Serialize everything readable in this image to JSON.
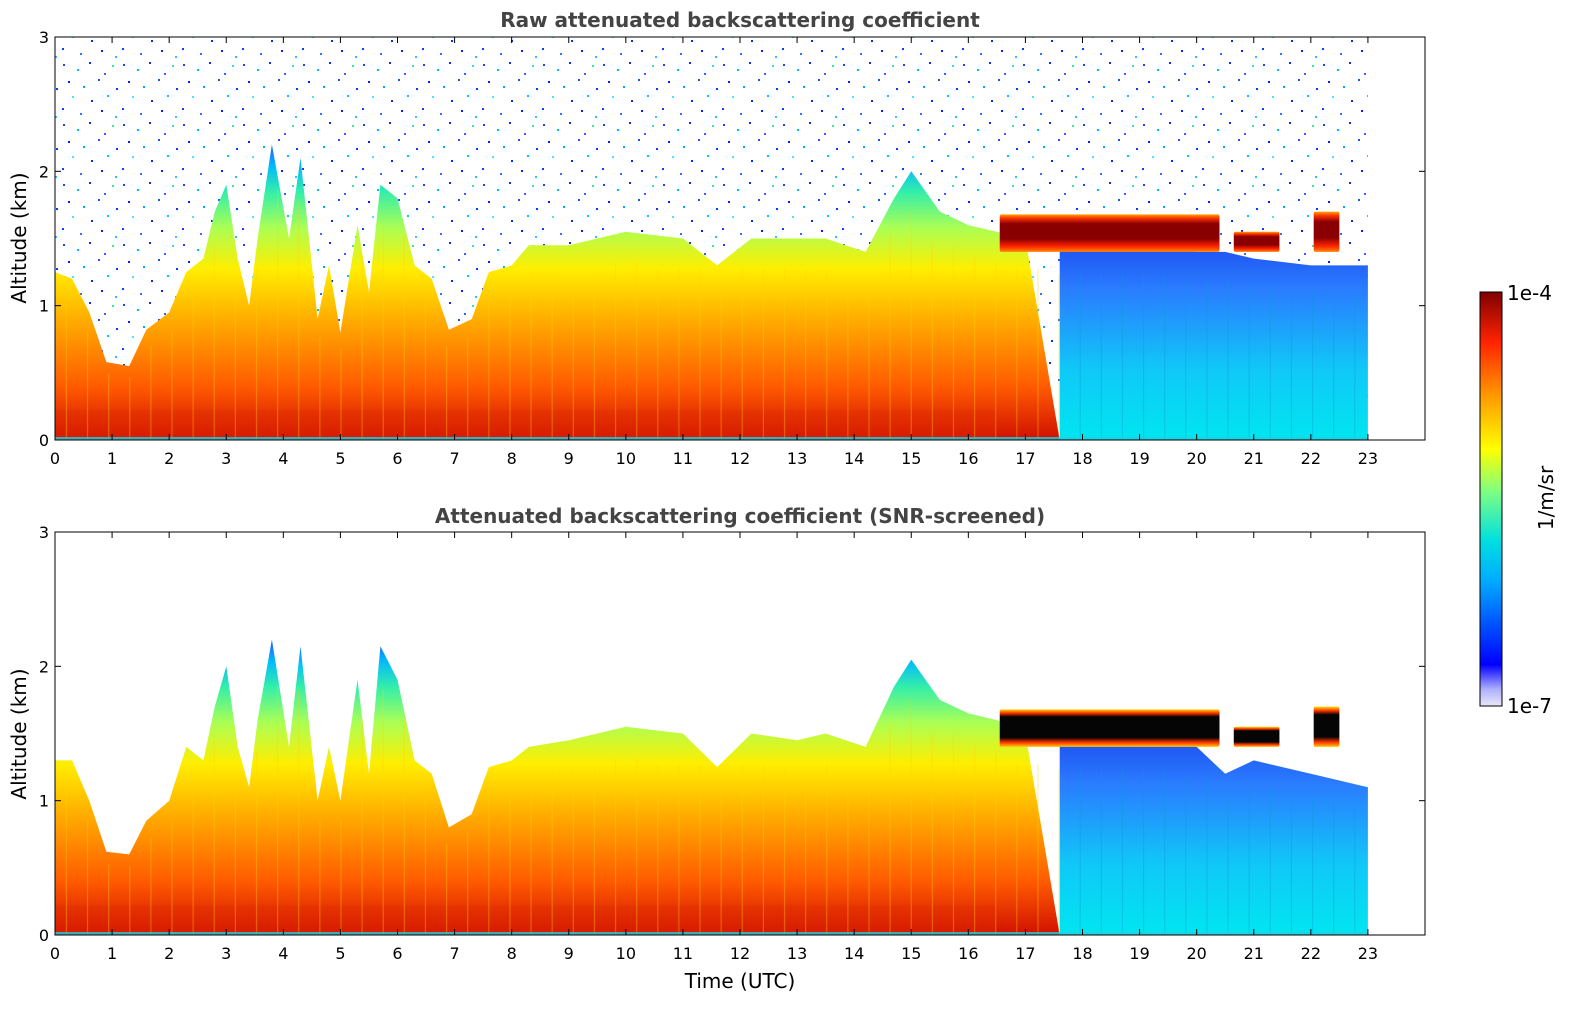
{
  "chart_data": [
    {
      "type": "heatmap",
      "title": "Raw attenuated backscattering coefficient",
      "xlabel": "",
      "ylabel": "Altitude (km)",
      "xlim": [
        0,
        24
      ],
      "ylim": [
        0,
        3
      ],
      "x_ticks": [
        "0",
        "1",
        "2",
        "3",
        "4",
        "5",
        "6",
        "7",
        "8",
        "9",
        "10",
        "11",
        "12",
        "13",
        "14",
        "15",
        "16",
        "17",
        "18",
        "19",
        "20",
        "21",
        "22",
        "23"
      ],
      "y_ticks": [
        "0",
        "1",
        "2",
        "3"
      ],
      "data_end_hour": 23,
      "screened": false,
      "colorbar": {
        "label": "1/m/sr",
        "min_label": "1e-7",
        "max_label": "1e-4",
        "scale": "log"
      },
      "aerosol_layer_top_km": [
        {
          "t": 0,
          "h": 1.25
        },
        {
          "t": 0.3,
          "h": 1.2
        },
        {
          "t": 0.6,
          "h": 0.95
        },
        {
          "t": 0.9,
          "h": 0.58
        },
        {
          "t": 1.3,
          "h": 0.55
        },
        {
          "t": 1.6,
          "h": 0.82
        },
        {
          "t": 2.0,
          "h": 0.95
        },
        {
          "t": 2.3,
          "h": 1.25
        },
        {
          "t": 2.6,
          "h": 1.35
        },
        {
          "t": 2.8,
          "h": 1.7
        },
        {
          "t": 3.0,
          "h": 1.9
        },
        {
          "t": 3.2,
          "h": 1.35
        },
        {
          "t": 3.4,
          "h": 1.0
        },
        {
          "t": 3.55,
          "h": 1.5
        },
        {
          "t": 3.8,
          "h": 2.2
        },
        {
          "t": 4.1,
          "h": 1.5
        },
        {
          "t": 4.3,
          "h": 2.1
        },
        {
          "t": 4.6,
          "h": 0.9
        },
        {
          "t": 4.8,
          "h": 1.3
        },
        {
          "t": 5.0,
          "h": 0.8
        },
        {
          "t": 5.3,
          "h": 1.6
        },
        {
          "t": 5.5,
          "h": 1.1
        },
        {
          "t": 5.7,
          "h": 1.9
        },
        {
          "t": 6.0,
          "h": 1.8
        },
        {
          "t": 6.3,
          "h": 1.3
        },
        {
          "t": 6.6,
          "h": 1.2
        },
        {
          "t": 6.9,
          "h": 0.82
        },
        {
          "t": 7.3,
          "h": 0.9
        },
        {
          "t": 7.6,
          "h": 1.25
        },
        {
          "t": 8.0,
          "h": 1.3
        },
        {
          "t": 8.3,
          "h": 1.45
        },
        {
          "t": 9.0,
          "h": 1.45
        },
        {
          "t": 10.0,
          "h": 1.55
        },
        {
          "t": 11.0,
          "h": 1.5
        },
        {
          "t": 11.6,
          "h": 1.3
        },
        {
          "t": 12.2,
          "h": 1.5
        },
        {
          "t": 13.0,
          "h": 1.5
        },
        {
          "t": 13.5,
          "h": 1.5
        },
        {
          "t": 14.2,
          "h": 1.4
        },
        {
          "t": 14.7,
          "h": 1.8
        },
        {
          "t": 15.0,
          "h": 2.0
        },
        {
          "t": 15.5,
          "h": 1.7
        },
        {
          "t": 16.0,
          "h": 1.6
        },
        {
          "t": 16.5,
          "h": 1.55
        },
        {
          "t": 17.0,
          "h": 1.5
        },
        {
          "t": 18.0,
          "h": 1.45
        },
        {
          "t": 19.0,
          "h": 1.45
        },
        {
          "t": 20.0,
          "h": 1.4
        },
        {
          "t": 20.5,
          "h": 1.4
        },
        {
          "t": 21.0,
          "h": 1.35
        },
        {
          "t": 22.0,
          "h": 1.3
        },
        {
          "t": 23.0,
          "h": 1.3
        }
      ],
      "cloud_segments": [
        {
          "t0": 16.55,
          "t1": 20.4,
          "base_km": 1.4,
          "top_km": 1.68
        },
        {
          "t0": 20.65,
          "t1": 21.45,
          "base_km": 1.4,
          "top_km": 1.55
        },
        {
          "t0": 22.05,
          "t1": 22.5,
          "base_km": 1.4,
          "top_km": 1.7
        }
      ]
    },
    {
      "type": "heatmap",
      "title": "Attenuated backscattering coefficient (SNR-screened)",
      "xlabel": "Time (UTC)",
      "ylabel": "Altitude (km)",
      "xlim": [
        0,
        24
      ],
      "ylim": [
        0,
        3
      ],
      "x_ticks": [
        "0",
        "1",
        "2",
        "3",
        "4",
        "5",
        "6",
        "7",
        "8",
        "9",
        "10",
        "11",
        "12",
        "13",
        "14",
        "15",
        "16",
        "17",
        "18",
        "19",
        "20",
        "21",
        "22",
        "23"
      ],
      "y_ticks": [
        "0",
        "1",
        "2",
        "3"
      ],
      "data_end_hour": 23,
      "screened": true,
      "colorbar": {
        "label": "1/m/sr",
        "min_label": "1e-7",
        "max_label": "1e-4",
        "scale": "log"
      },
      "aerosol_layer_top_km": [
        {
          "t": 0,
          "h": 1.3
        },
        {
          "t": 0.3,
          "h": 1.3
        },
        {
          "t": 0.6,
          "h": 1.0
        },
        {
          "t": 0.9,
          "h": 0.62
        },
        {
          "t": 1.3,
          "h": 0.6
        },
        {
          "t": 1.6,
          "h": 0.85
        },
        {
          "t": 2.0,
          "h": 1.0
        },
        {
          "t": 2.3,
          "h": 1.4
        },
        {
          "t": 2.6,
          "h": 1.3
        },
        {
          "t": 2.8,
          "h": 1.7
        },
        {
          "t": 3.0,
          "h": 2.0
        },
        {
          "t": 3.2,
          "h": 1.4
        },
        {
          "t": 3.4,
          "h": 1.1
        },
        {
          "t": 3.55,
          "h": 1.6
        },
        {
          "t": 3.8,
          "h": 2.2
        },
        {
          "t": 4.1,
          "h": 1.4
        },
        {
          "t": 4.3,
          "h": 2.15
        },
        {
          "t": 4.6,
          "h": 1.0
        },
        {
          "t": 4.8,
          "h": 1.4
        },
        {
          "t": 5.0,
          "h": 1.0
        },
        {
          "t": 5.3,
          "h": 1.9
        },
        {
          "t": 5.5,
          "h": 1.2
        },
        {
          "t": 5.7,
          "h": 2.15
        },
        {
          "t": 6.0,
          "h": 1.9
        },
        {
          "t": 6.3,
          "h": 1.3
        },
        {
          "t": 6.6,
          "h": 1.2
        },
        {
          "t": 6.9,
          "h": 0.8
        },
        {
          "t": 7.3,
          "h": 0.9
        },
        {
          "t": 7.6,
          "h": 1.25
        },
        {
          "t": 8.0,
          "h": 1.3
        },
        {
          "t": 8.3,
          "h": 1.4
        },
        {
          "t": 9.0,
          "h": 1.45
        },
        {
          "t": 10.0,
          "h": 1.55
        },
        {
          "t": 11.0,
          "h": 1.5
        },
        {
          "t": 11.6,
          "h": 1.25
        },
        {
          "t": 12.2,
          "h": 1.5
        },
        {
          "t": 13.0,
          "h": 1.45
        },
        {
          "t": 13.5,
          "h": 1.5
        },
        {
          "t": 14.2,
          "h": 1.4
        },
        {
          "t": 14.7,
          "h": 1.85
        },
        {
          "t": 15.0,
          "h": 2.05
        },
        {
          "t": 15.5,
          "h": 1.75
        },
        {
          "t": 16.0,
          "h": 1.65
        },
        {
          "t": 16.5,
          "h": 1.6
        },
        {
          "t": 17.0,
          "h": 1.5
        },
        {
          "t": 18.0,
          "h": 1.45
        },
        {
          "t": 19.0,
          "h": 1.45
        },
        {
          "t": 20.0,
          "h": 1.4
        },
        {
          "t": 20.5,
          "h": 1.2
        },
        {
          "t": 21.0,
          "h": 1.3
        },
        {
          "t": 22.0,
          "h": 1.2
        },
        {
          "t": 23.0,
          "h": 1.1
        }
      ],
      "cloud_segments": [
        {
          "t0": 16.55,
          "t1": 20.4,
          "base_km": 1.4,
          "top_km": 1.68
        },
        {
          "t0": 20.65,
          "t1": 21.45,
          "base_km": 1.4,
          "top_km": 1.55
        },
        {
          "t0": 22.05,
          "t1": 22.5,
          "base_km": 1.4,
          "top_km": 1.7
        }
      ]
    }
  ]
}
